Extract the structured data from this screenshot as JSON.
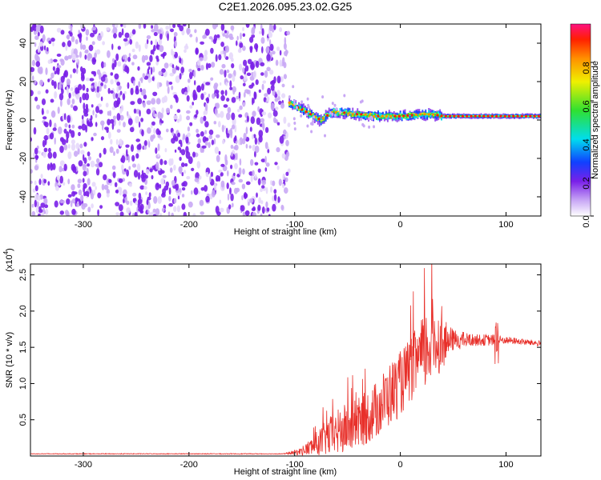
{
  "figure": {
    "title": "C2E1.2026.095.23.02.G25"
  },
  "chart_data": [
    {
      "type": "heatmap",
      "xlabel": "Height of straight line (km)",
      "ylabel": "Frequency (Hz)",
      "xlim": [
        -350,
        133
      ],
      "ylim": [
        -50,
        50
      ],
      "xticks": [
        -300,
        -200,
        -100,
        0,
        100
      ],
      "yticks": [
        -40,
        -20,
        0,
        20,
        40
      ],
      "colorbar": {
        "label": "Normalized spectral amplitude",
        "range": [
          0,
          1
        ],
        "ticks": [
          "0.0",
          "0.2",
          "0.4",
          "0.6",
          "0.8"
        ],
        "colormap": "rainbow (white-violet-blue-cyan-green-yellow-orange-red)"
      },
      "regions": {
        "noise_region_x": [
          -350,
          -105
        ],
        "noise_amplitude": "low (~0.1-0.3), spread across all frequencies",
        "signal_region_x": [
          -105,
          133
        ],
        "signal_ridge": [
          {
            "x": -105,
            "f": 9
          },
          {
            "x": -95,
            "f": 6
          },
          {
            "x": -85,
            "f": 3
          },
          {
            "x": -75,
            "f": 0
          },
          {
            "x": -65,
            "f": 4
          },
          {
            "x": -55,
            "f": 4
          },
          {
            "x": -45,
            "f": 3
          },
          {
            "x": -35,
            "f": 3
          },
          {
            "x": -25,
            "f": 2
          },
          {
            "x": -15,
            "f": 2
          },
          {
            "x": 0,
            "f": 2
          },
          {
            "x": 20,
            "f": 3
          },
          {
            "x": 30,
            "f": 3
          },
          {
            "x": 40,
            "f": 2
          },
          {
            "x": 60,
            "f": 2
          },
          {
            "x": 85,
            "f": 2
          },
          {
            "x": 133,
            "f": 2
          }
        ]
      },
      "colors": {
        "violet": "#7a20e8",
        "light_violet": "#c9a8f5",
        "blue": "#1040ff",
        "cyan": "#00ddee",
        "green": "#30e030",
        "yellow": "#f0f000",
        "red": "#ff2000"
      }
    },
    {
      "type": "line",
      "xlabel": "Height of straight line (km)",
      "ylabel": "SNR (10 * v/v)",
      "y_multiplier": "(x10^4)",
      "xlim": [
        -350,
        133
      ],
      "ylim": [
        0,
        2.65
      ],
      "xticks": [
        -300,
        -200,
        -100,
        0,
        100
      ],
      "yticks": [
        "0.5",
        "1.0",
        "1.5",
        "2.0",
        "2.5"
      ],
      "series": [
        {
          "color": "#e8302a",
          "envelope": [
            {
              "x": -350,
              "mean": 0.03,
              "spread": 0.005
            },
            {
              "x": -110,
              "mean": 0.03,
              "spread": 0.005
            },
            {
              "x": -95,
              "mean": 0.06,
              "spread": 0.05
            },
            {
              "x": -85,
              "mean": 0.12,
              "spread": 0.12
            },
            {
              "x": -70,
              "mean": 0.25,
              "spread": 0.25
            },
            {
              "x": -55,
              "mean": 0.35,
              "spread": 0.35
            },
            {
              "x": -40,
              "mean": 0.45,
              "spread": 0.35
            },
            {
              "x": -25,
              "mean": 0.6,
              "spread": 0.4
            },
            {
              "x": -10,
              "mean": 0.85,
              "spread": 0.45
            },
            {
              "x": 0,
              "mean": 1.0,
              "spread": 0.45
            },
            {
              "x": 10,
              "mean": 1.2,
              "spread": 0.45
            },
            {
              "x": 20,
              "mean": 1.35,
              "spread": 0.55
            },
            {
              "x": 30,
              "mean": 1.6,
              "spread": 0.6
            },
            {
              "x": 40,
              "mean": 1.55,
              "spread": 0.35
            },
            {
              "x": 50,
              "mean": 1.6,
              "spread": 0.15
            },
            {
              "x": 70,
              "mean": 1.6,
              "spread": 0.08
            },
            {
              "x": 90,
              "mean": 1.6,
              "spread": 0.08
            },
            {
              "x": 100,
              "mean": 1.6,
              "spread": 0.05
            },
            {
              "x": 133,
              "mean": 1.55,
              "spread": 0.04
            }
          ]
        }
      ]
    }
  ]
}
